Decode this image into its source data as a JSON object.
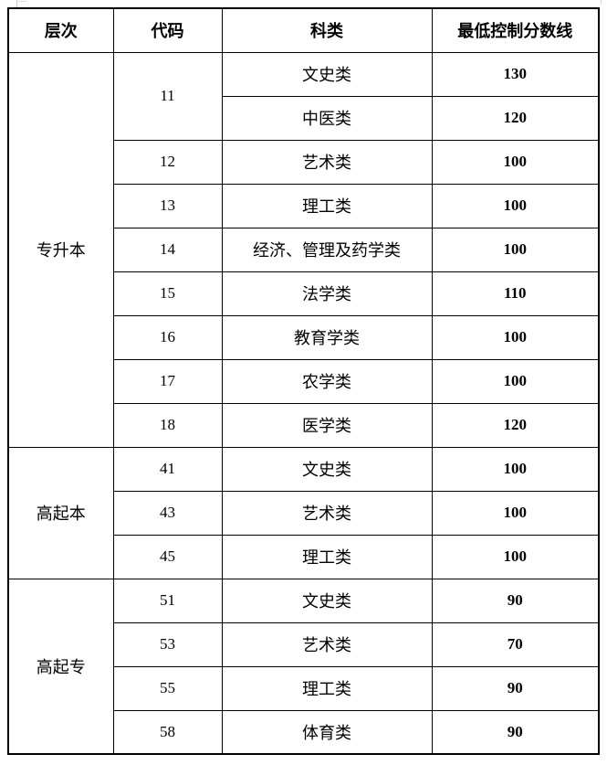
{
  "page": {
    "background": "#ffffff",
    "border_color": "#000000",
    "text_color": "#000000",
    "artifact_color": "#c9c9c9"
  },
  "table": {
    "headers": [
      "层次",
      "代码",
      "科类",
      "最低控制分数线"
    ],
    "rows": [
      {
        "level": "专升本",
        "level_rowspan": 9,
        "code": "11",
        "code_rowspan": 2,
        "category": "文史类",
        "score": "130"
      },
      {
        "category": "中医类",
        "score": "120"
      },
      {
        "code": "12",
        "category": "艺术类",
        "score": "100"
      },
      {
        "code": "13",
        "category": "理工类",
        "score": "100"
      },
      {
        "code": "14",
        "category": "经济、管理及药学类",
        "score": "100"
      },
      {
        "code": "15",
        "category": "法学类",
        "score": "110"
      },
      {
        "code": "16",
        "category": "教育学类",
        "score": "100"
      },
      {
        "code": "17",
        "category": "农学类",
        "score": "100"
      },
      {
        "code": "18",
        "category": "医学类",
        "score": "120"
      },
      {
        "level": "高起本",
        "level_rowspan": 3,
        "code": "41",
        "category": "文史类",
        "score": "100"
      },
      {
        "code": "43",
        "category": "艺术类",
        "score": "100"
      },
      {
        "code": "45",
        "category": "理工类",
        "score": "100"
      },
      {
        "level": "高起专",
        "level_rowspan": 4,
        "code": "51",
        "category": "文史类",
        "score": "90"
      },
      {
        "code": "53",
        "category": "艺术类",
        "score": "70"
      },
      {
        "code": "55",
        "category": "理工类",
        "score": "90"
      },
      {
        "code": "58",
        "category": "体育类",
        "score": "90"
      }
    ]
  }
}
